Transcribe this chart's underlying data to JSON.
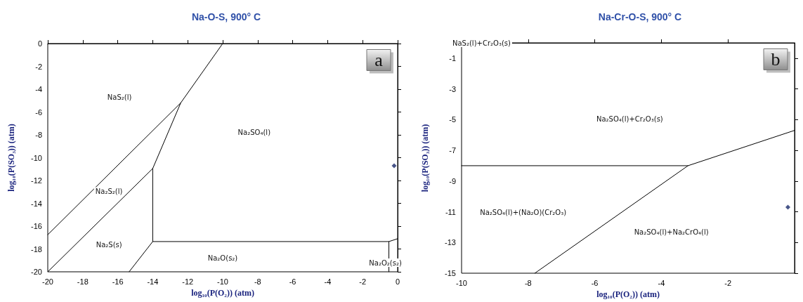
{
  "chart_data": [
    {
      "type": "line",
      "title": "Na-O-S, 900° C",
      "xlabel": "log₁₀(P(O₂)) (atm)",
      "ylabel": "log₁₀(P(SO₃)) (atm)",
      "xlim": [
        -20,
        0
      ],
      "ylim": [
        -20,
        0
      ],
      "xticks": [
        -20,
        -18,
        -16,
        -14,
        -12,
        -10,
        -8,
        -6,
        -4,
        -2,
        0
      ],
      "yticks": [
        0,
        -2,
        -4,
        -6,
        -8,
        -10,
        -12,
        -14,
        -16,
        -18,
        -20
      ],
      "grid": false,
      "marker": "none",
      "series": [
        {
          "color": "#000000",
          "x": [
            -20,
            -12.4,
            -10
          ],
          "values": [
            -16.75,
            -5.2,
            0
          ]
        },
        {
          "color": "#000000",
          "x": [
            -20,
            -14,
            -12.4
          ],
          "values": [
            -20,
            -10.95,
            -5.2
          ]
        },
        {
          "color": "#000000",
          "x": [
            -14,
            -14,
            -0.5,
            0
          ],
          "values": [
            -10.95,
            -17.35,
            -17.35,
            -17.1
          ]
        },
        {
          "color": "#000000",
          "x": [
            -15.35,
            -14
          ],
          "values": [
            -20,
            -17.35
          ]
        },
        {
          "color": "#000000",
          "x": [
            -0.5,
            -0.5
          ],
          "values": [
            -17.35,
            -20
          ]
        },
        {
          "type": "scatter",
          "marker": "diamond",
          "color": "#1a2a6c",
          "x": [
            -0.2
          ],
          "values": [
            -10.7
          ]
        }
      ],
      "annotations": [
        "a",
        "NaS₂(l)",
        "Na₂SO₄(l)",
        "Na₂S₂(l)",
        "Na₂S(s)",
        "Na₂O(s₂)",
        "Na₂O₂(s₂)"
      ]
    },
    {
      "type": "line",
      "title": "Na-Cr-O-S, 900° C",
      "xlabel": "log₁₀(P(O₂)) (atm)",
      "ylabel": "log₁₀(P(SO₃)) (atm)",
      "xlim": [
        -10,
        0
      ],
      "ylim": [
        -15,
        0
      ],
      "xticks": [
        -10,
        -8,
        -6,
        -4,
        -2
      ],
      "yticks": [
        -1,
        -3,
        -5,
        -7,
        -9,
        -11,
        -13,
        -15
      ],
      "grid": false,
      "marker": "none",
      "series": [
        {
          "color": "#000000",
          "x": [
            -10,
            -3.2
          ],
          "values": [
            -8,
            -8
          ]
        },
        {
          "color": "#000000",
          "x": [
            -7.8,
            -3.2,
            0
          ],
          "values": [
            -15,
            -8,
            -5.7
          ]
        },
        {
          "type": "scatter",
          "marker": "diamond",
          "color": "#1a2a6c",
          "x": [
            -0.2
          ],
          "values": [
            -10.7
          ]
        }
      ],
      "annotations": [
        "b",
        "NaS₂(l)+Cr₂O₃(s)",
        "Na₂SO₄(l)+Cr₂O₃(s)",
        "Na₂SO₄(l)+(Na₂O)(Cr₂O₃)",
        "Na₂SO₄(l)+Na₂CrO₄(l)"
      ]
    }
  ]
}
